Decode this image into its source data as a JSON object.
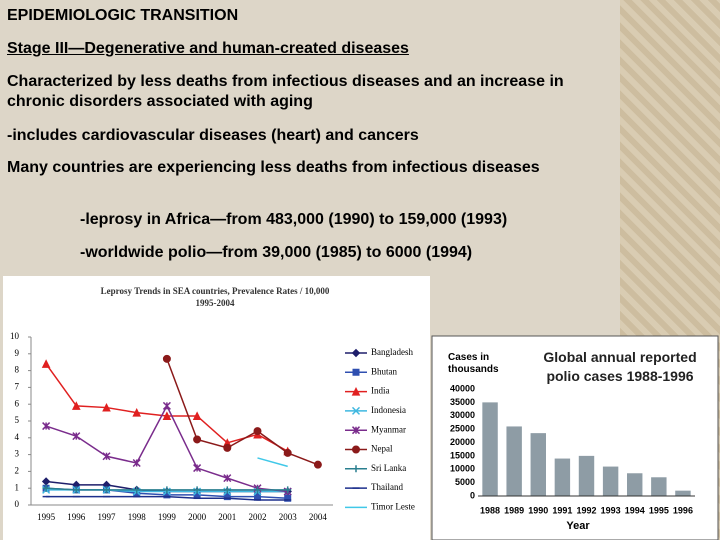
{
  "slide": {
    "title": "EPIDEMIOLOGIC TRANSITION",
    "subtitle": "Stage III—Degenerative and human-created diseases",
    "items": [
      "Characterized by less deaths from infectious diseases and an increase in chronic disorders associated with aging",
      "-includes cardiovascular diseases (heart) and cancers",
      "Many countries are experiencing less deaths from infectious diseases",
      "-leprosy in Africa—from 483,000 (1990) to 159,000 (1993)",
      "-worldwide polio—from 39,000 (1985) to 6000 (1994)"
    ]
  },
  "chart_data": [
    {
      "type": "line",
      "title": "Leprosy Trends in SEA countries, Prevalence Rates / 10,000",
      "subtitle": "1995-2004",
      "categories": [
        "1995",
        "1996",
        "1997",
        "1998",
        "1999",
        "2000",
        "2001",
        "2002",
        "2003",
        "2004"
      ],
      "ylim": [
        0,
        10
      ],
      "yticks": [
        0,
        1,
        2,
        3,
        4,
        5,
        6,
        7,
        8,
        9,
        10
      ],
      "legend": "right",
      "series": [
        {
          "name": "Bangladesh",
          "color": "#1f1f6b",
          "marker": "diamond",
          "values": [
            1.4,
            1.2,
            1.2,
            0.9,
            0.8,
            0.8,
            0.8,
            0.8,
            0.8,
            null
          ]
        },
        {
          "name": "Bhutan",
          "color": "#2f4fb0",
          "marker": "square",
          "values": [
            1.0,
            0.9,
            0.9,
            0.7,
            0.6,
            0.6,
            0.5,
            0.5,
            0.4,
            null
          ]
        },
        {
          "name": "India",
          "color": "#e02020",
          "marker": "triangle",
          "values": [
            8.4,
            5.9,
            5.8,
            5.5,
            5.3,
            5.3,
            3.7,
            4.2,
            3.2,
            null
          ]
        },
        {
          "name": "Indonesia",
          "color": "#3fb8e0",
          "marker": "x",
          "values": [
            0.9,
            0.9,
            0.9,
            0.8,
            0.8,
            0.8,
            0.8,
            0.8,
            0.8,
            null
          ]
        },
        {
          "name": "Myanmar",
          "color": "#7a2c8c",
          "marker": "star",
          "values": [
            4.7,
            4.1,
            2.9,
            2.5,
            5.9,
            2.2,
            1.6,
            1.0,
            0.8,
            null
          ]
        },
        {
          "name": "Nepal",
          "color": "#8b1a1a",
          "marker": "circle",
          "values": [
            null,
            null,
            null,
            null,
            8.7,
            3.9,
            3.4,
            4.4,
            3.1,
            2.4
          ]
        },
        {
          "name": "Sri Lanka",
          "color": "#2a7f8f",
          "marker": "plus",
          "values": [
            1.0,
            0.9,
            0.9,
            0.9,
            0.9,
            0.9,
            0.9,
            0.9,
            0.9,
            null
          ]
        },
        {
          "name": "Thailand",
          "color": "#1c2f8c",
          "marker": "dash",
          "values": [
            0.5,
            0.5,
            0.5,
            0.5,
            0.5,
            0.4,
            0.4,
            0.3,
            0.3,
            null
          ]
        },
        {
          "name": "Timor Leste",
          "color": "#40c8e8",
          "marker": "none",
          "values": [
            null,
            null,
            null,
            null,
            null,
            null,
            null,
            2.8,
            2.3,
            null
          ]
        }
      ]
    },
    {
      "type": "bar",
      "title": "Global annual reported polio cases 1988-1996",
      "ylabel": "Cases in thousands",
      "xlabel": "Year",
      "categories": [
        "1988",
        "1989",
        "1990",
        "1991",
        "1992",
        "1993",
        "1994",
        "1995",
        "1996"
      ],
      "values": [
        35000,
        26000,
        23500,
        14000,
        15000,
        11000,
        8500,
        7000,
        2000
      ],
      "color": "#8e9ca5",
      "ylim": [
        0,
        40000
      ],
      "yticks": [
        0,
        5000,
        10000,
        15000,
        20000,
        25000,
        30000,
        35000,
        40000
      ]
    }
  ]
}
